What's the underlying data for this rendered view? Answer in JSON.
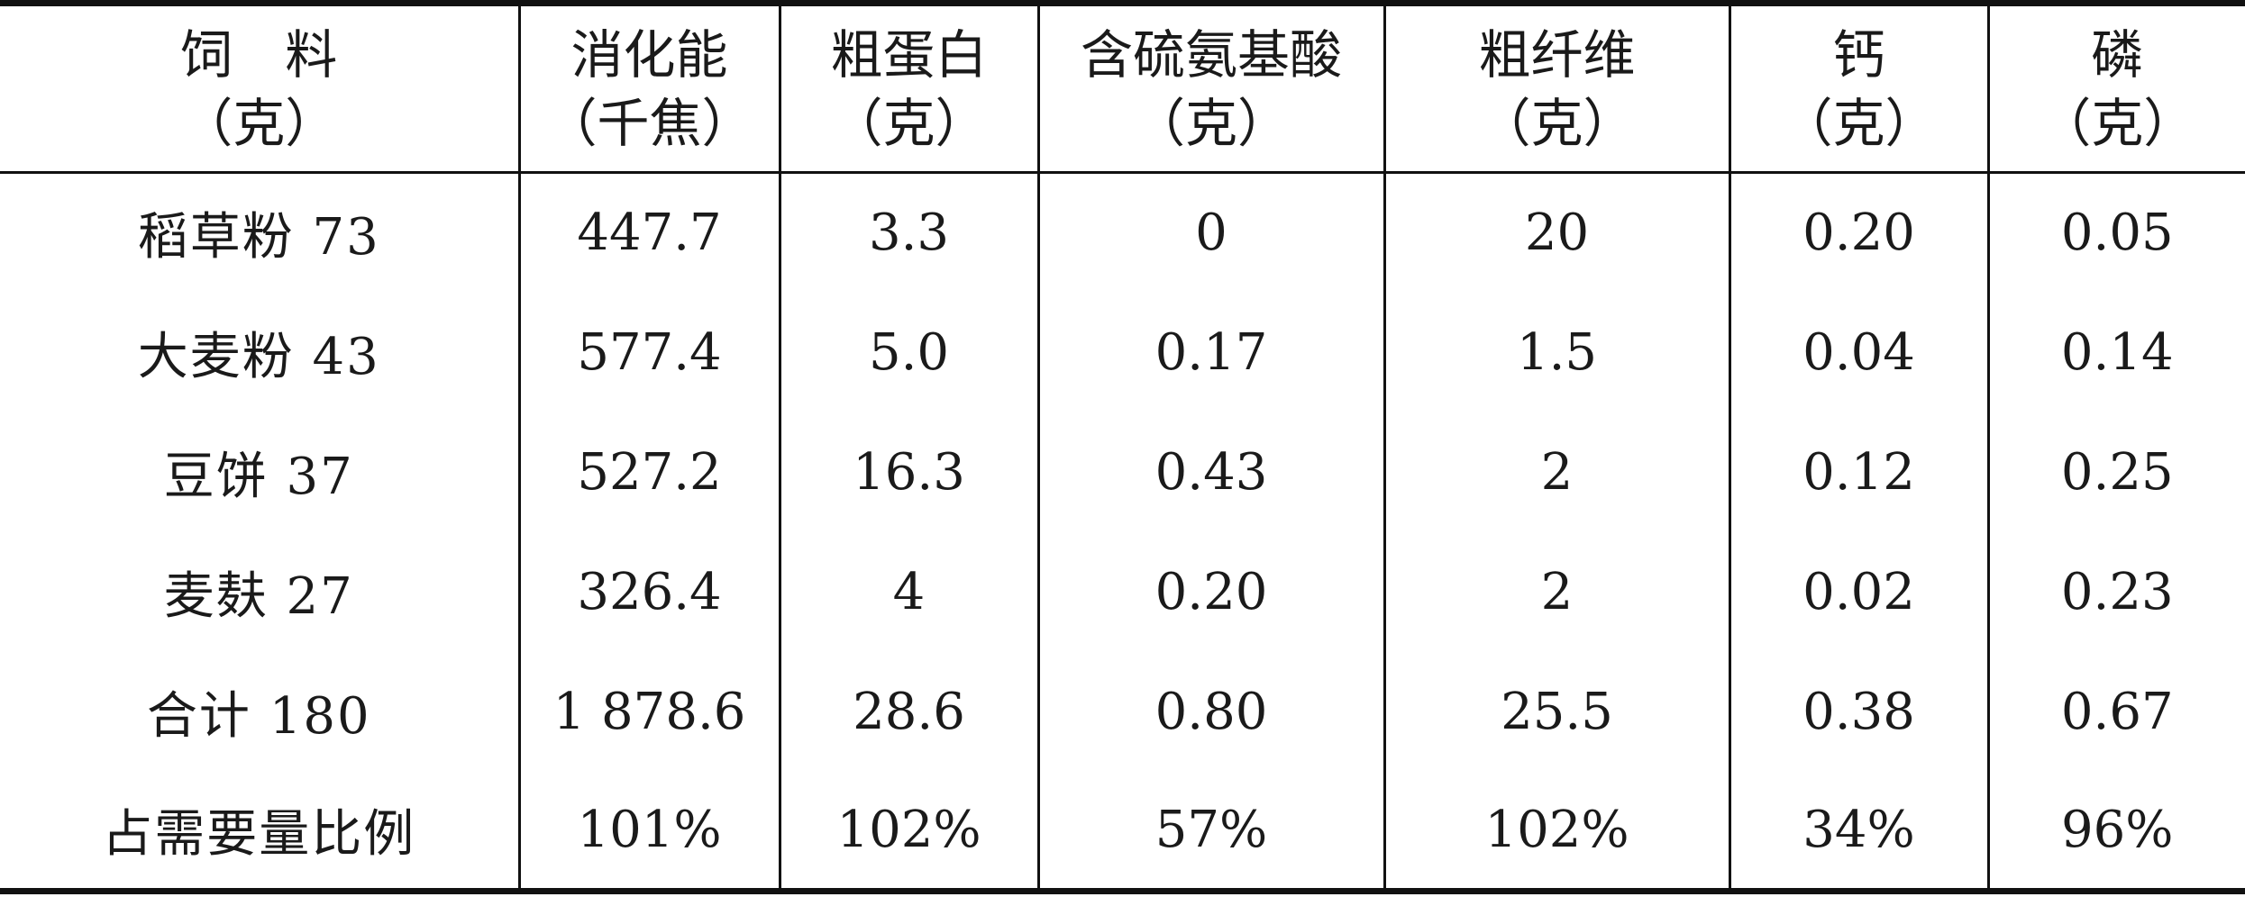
{
  "table": {
    "headers": [
      {
        "line1": "饲　料",
        "line2": "（克）"
      },
      {
        "line1": "消化能",
        "line2": "（千焦）"
      },
      {
        "line1": "粗蛋白",
        "line2": "（克）"
      },
      {
        "line1": "含硫氨基酸",
        "line2": "（克）"
      },
      {
        "line1": "粗纤维",
        "line2": "（克）"
      },
      {
        "line1": "钙",
        "line2": "（克）"
      },
      {
        "line1": "磷",
        "line2": "（克）"
      }
    ],
    "rows": [
      {
        "feed": "稻草粉 73",
        "energy": "447.7",
        "protein": "3.3",
        "sulfur_aa": "0",
        "fiber": "20",
        "calcium": "0.20",
        "phosphorus": "0.05"
      },
      {
        "feed": "大麦粉 43",
        "energy": "577.4",
        "protein": "5.0",
        "sulfur_aa": "0.17",
        "fiber": "1.5",
        "calcium": "0.04",
        "phosphorus": "0.14"
      },
      {
        "feed": "豆饼 37",
        "energy": "527.2",
        "protein": "16.3",
        "sulfur_aa": "0.43",
        "fiber": "2",
        "calcium": "0.12",
        "phosphorus": "0.25"
      },
      {
        "feed": "麦麸 27",
        "energy": "326.4",
        "protein": "4",
        "sulfur_aa": "0.20",
        "fiber": "2",
        "calcium": "0.02",
        "phosphorus": "0.23"
      },
      {
        "feed": "合计 180",
        "energy": "1 878.6",
        "protein": "28.6",
        "sulfur_aa": "0.80",
        "fiber": "25.5",
        "calcium": "0.38",
        "phosphorus": "0.67"
      },
      {
        "feed": "占需要量比例",
        "energy": "101%",
        "protein": "102%",
        "sulfur_aa": "57%",
        "fiber": "102%",
        "calcium": "34%",
        "phosphorus": "96%"
      }
    ]
  }
}
